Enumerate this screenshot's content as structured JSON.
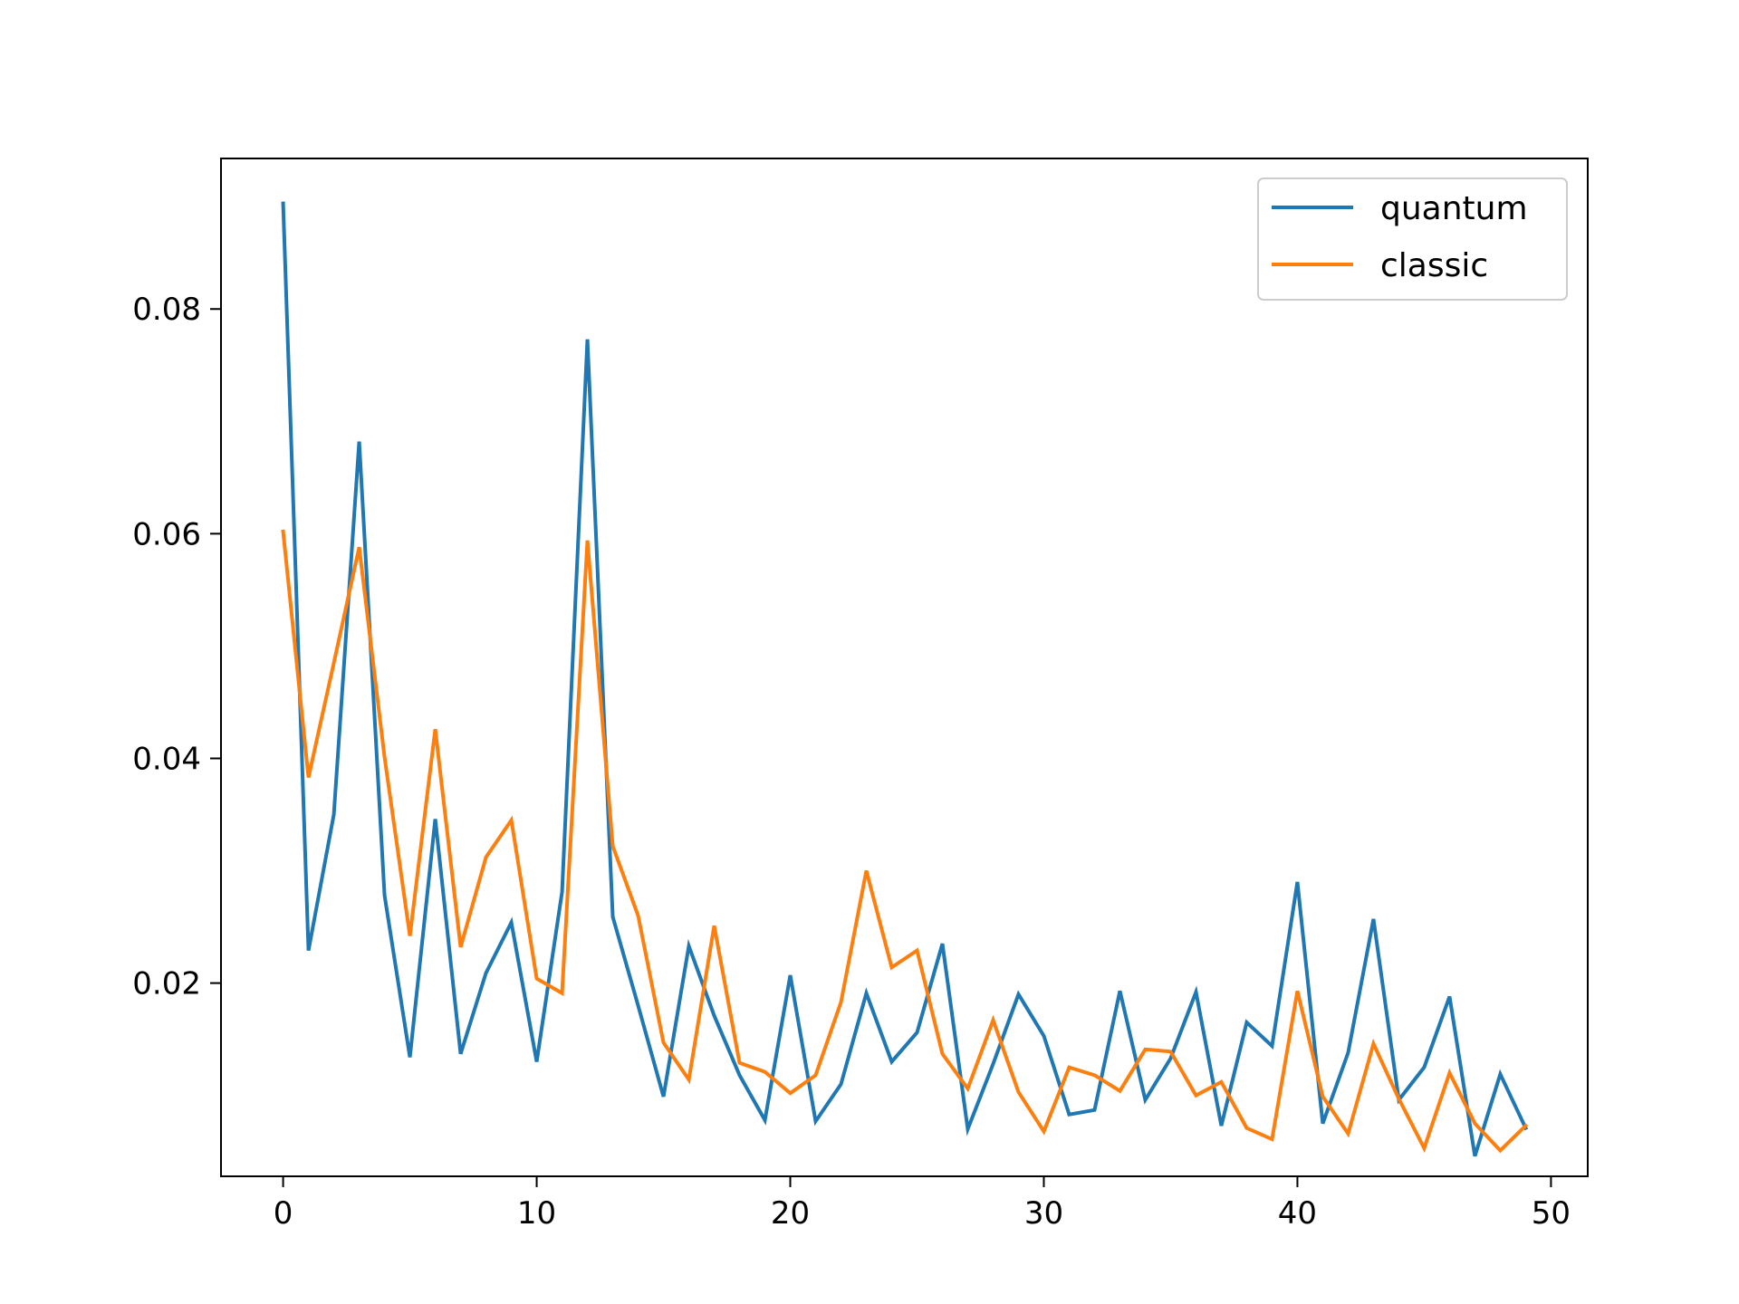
{
  "chart_data": {
    "type": "line",
    "title": "",
    "xlabel": "",
    "ylabel": "",
    "xlim": [
      -2.45,
      51.45
    ],
    "ylim": [
      0.0028,
      0.0934
    ],
    "xticks": [
      0,
      10,
      20,
      30,
      40,
      50
    ],
    "yticks": [
      0.02,
      0.04,
      0.06,
      0.08
    ],
    "xtick_labels": [
      "0",
      "10",
      "20",
      "30",
      "40",
      "50"
    ],
    "ytick_labels": [
      "0.02",
      "0.04",
      "0.06",
      "0.08"
    ],
    "grid": false,
    "legend": {
      "position": "top-right"
    },
    "x": [
      0,
      1,
      2,
      3,
      4,
      5,
      6,
      7,
      8,
      9,
      10,
      11,
      12,
      13,
      14,
      15,
      16,
      17,
      18,
      19,
      20,
      21,
      22,
      23,
      24,
      25,
      26,
      27,
      28,
      29,
      30,
      31,
      32,
      33,
      34,
      35,
      36,
      37,
      38,
      39,
      40,
      41,
      42,
      43,
      44,
      45,
      46,
      47,
      48,
      49
    ],
    "series": [
      {
        "name": "quantum",
        "color": "#1f77b4",
        "values": [
          0.0894,
          0.0229,
          0.035,
          0.0682,
          0.0278,
          0.0134,
          0.0346,
          0.0137,
          0.0209,
          0.0254,
          0.013,
          0.0281,
          0.0773,
          0.0259,
          0.018,
          0.0099,
          0.0233,
          0.0171,
          0.0118,
          0.0078,
          0.0207,
          0.0077,
          0.011,
          0.0191,
          0.013,
          0.0156,
          0.0235,
          0.007,
          0.0128,
          0.019,
          0.0153,
          0.0083,
          0.0087,
          0.0193,
          0.0096,
          0.0133,
          0.0192,
          0.0073,
          0.0165,
          0.0144,
          0.029,
          0.0075,
          0.0138,
          0.0257,
          0.0096,
          0.0125,
          0.0188,
          0.0046,
          0.0119,
          0.0071
        ]
      },
      {
        "name": "classic",
        "color": "#ff7f0e",
        "values": [
          0.0602,
          0.0383,
          0.0485,
          0.0588,
          0.0401,
          0.0242,
          0.0426,
          0.0232,
          0.0312,
          0.0345,
          0.0204,
          0.0191,
          0.0594,
          0.0322,
          0.026,
          0.0147,
          0.0114,
          0.0251,
          0.0129,
          0.0121,
          0.0102,
          0.0118,
          0.0183,
          0.03,
          0.0214,
          0.0229,
          0.0137,
          0.0106,
          0.0167,
          0.0103,
          0.0068,
          0.0125,
          0.0118,
          0.0104,
          0.0141,
          0.0139,
          0.01,
          0.0112,
          0.0071,
          0.0061,
          0.0193,
          0.0099,
          0.0066,
          0.0146,
          0.0097,
          0.0053,
          0.012,
          0.0075,
          0.0051,
          0.0073
        ]
      }
    ]
  }
}
